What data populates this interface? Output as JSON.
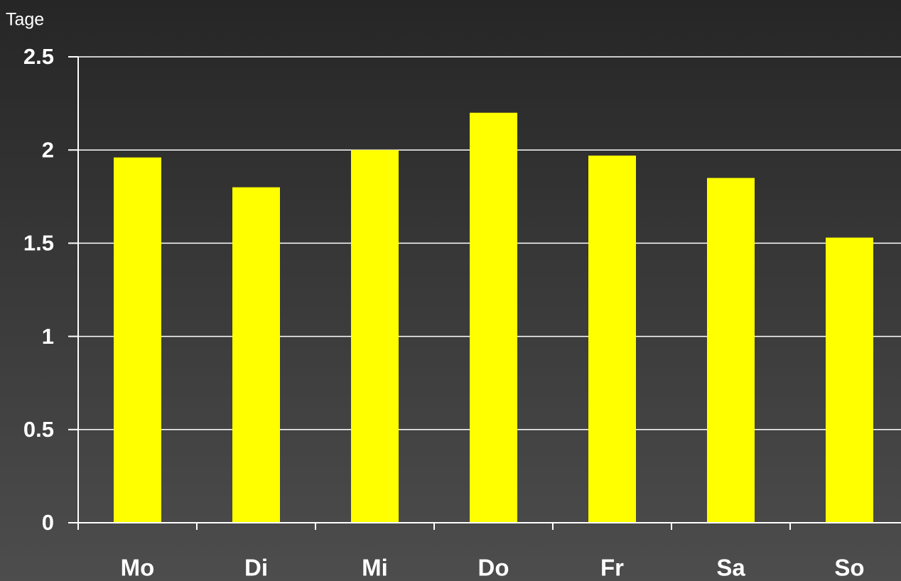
{
  "chart_data": {
    "type": "bar",
    "y_label": "Tage",
    "categories": [
      "Mo",
      "Di",
      "Mi",
      "Do",
      "Fr",
      "Sa",
      "So"
    ],
    "values": [
      1.96,
      1.8,
      2.0,
      2.2,
      1.97,
      1.85,
      1.53
    ],
    "color": "#ffff00",
    "ylim": [
      0,
      2.5
    ],
    "yticks": [
      0,
      0.5,
      1,
      1.5,
      2,
      2.5
    ],
    "grid": true
  }
}
